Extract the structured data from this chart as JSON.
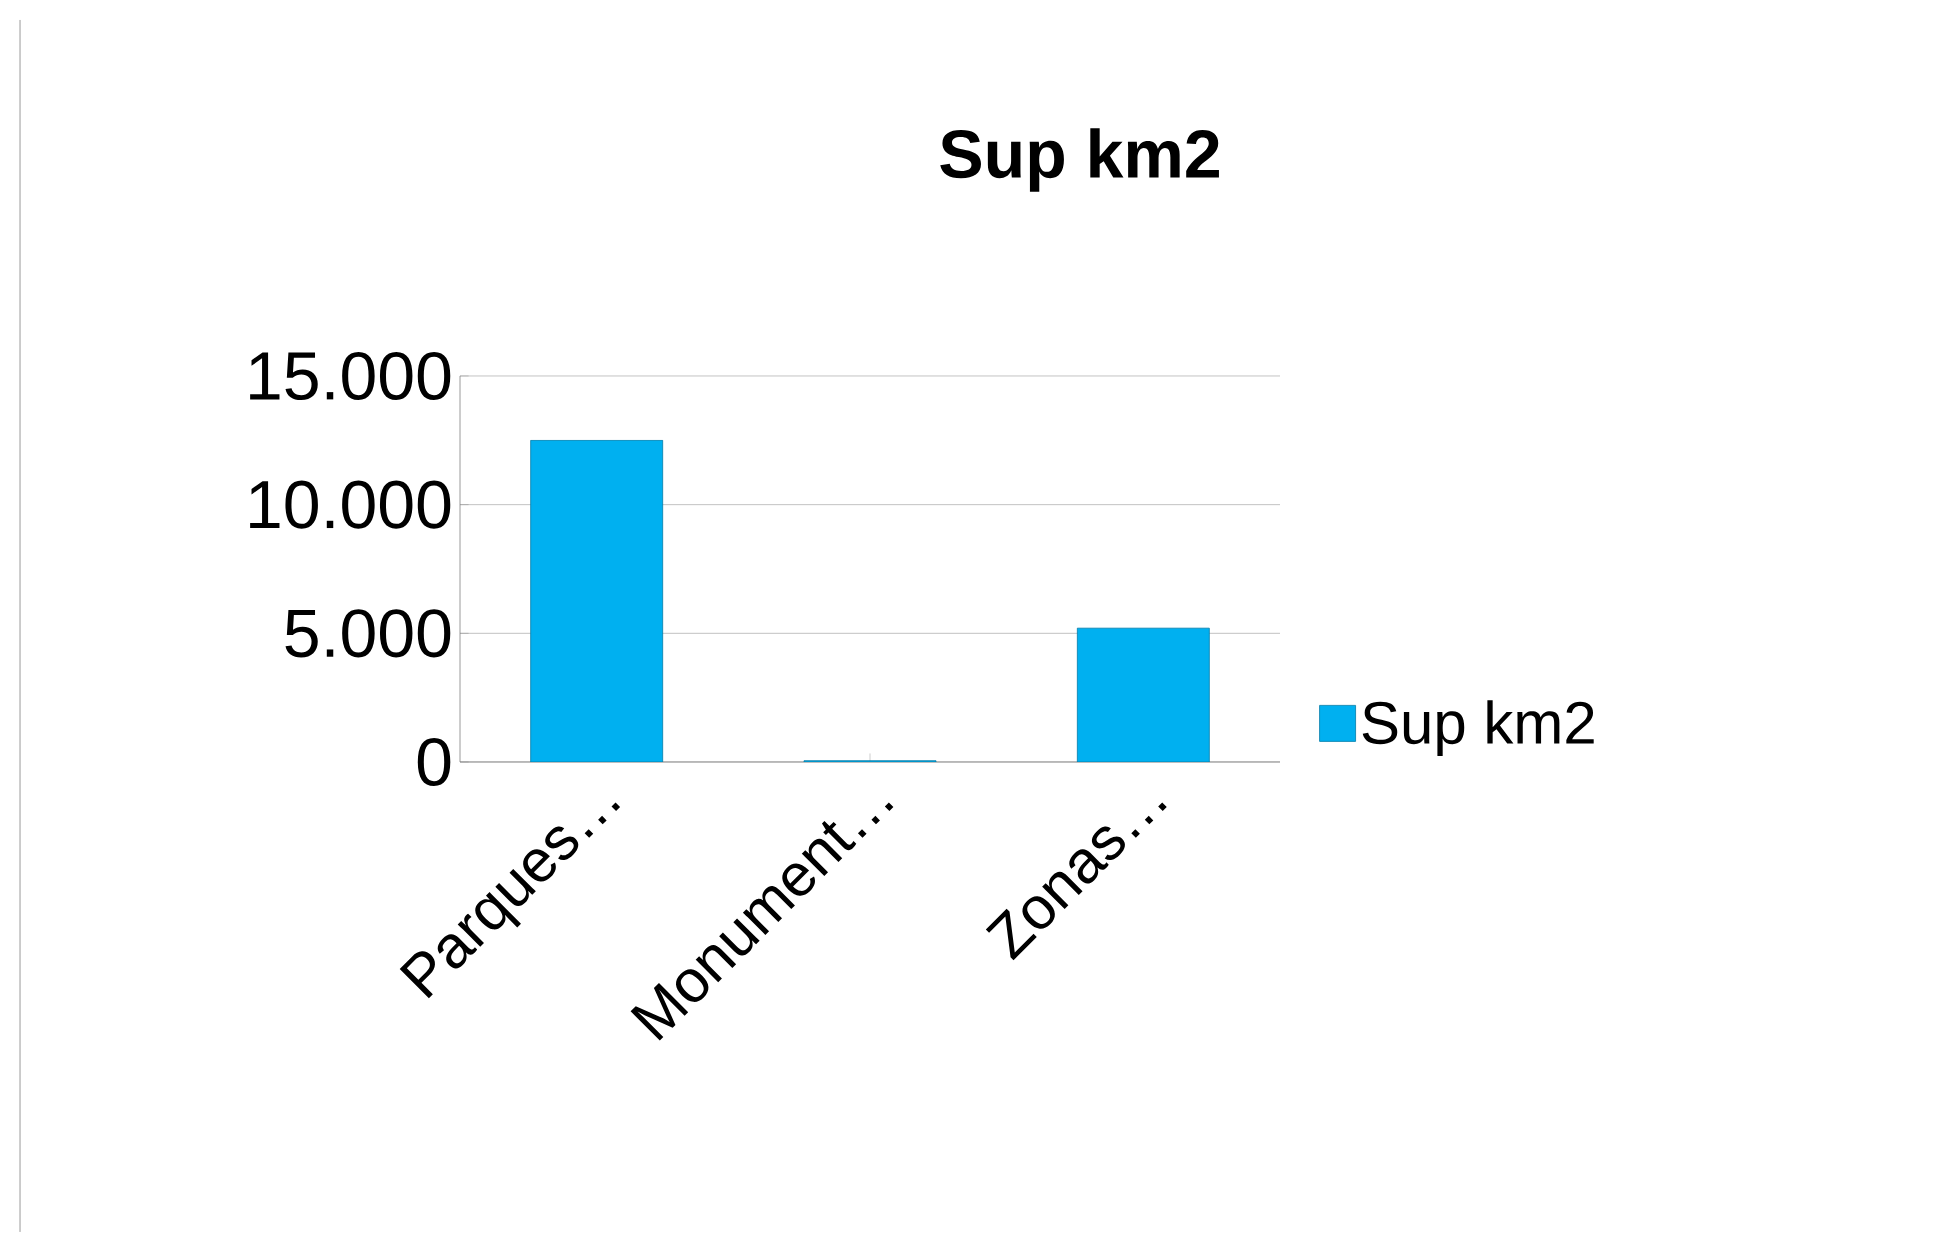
{
  "chart_data": {
    "type": "bar",
    "title": "Sup km2",
    "categories": [
      "Parques…",
      "Monument…",
      "Zonas…"
    ],
    "series": [
      {
        "name": "Sup km2",
        "color": "#00b0f0",
        "values": [
          12500,
          50,
          5200
        ]
      }
    ],
    "ylim": [
      0,
      15000
    ],
    "yticks": [
      {
        "value": 0,
        "label": "0"
      },
      {
        "value": 5000,
        "label": "5.000"
      },
      {
        "value": 10000,
        "label": "10.000"
      },
      {
        "value": 15000,
        "label": "15.000"
      }
    ],
    "grid": "y",
    "legend": "right"
  }
}
